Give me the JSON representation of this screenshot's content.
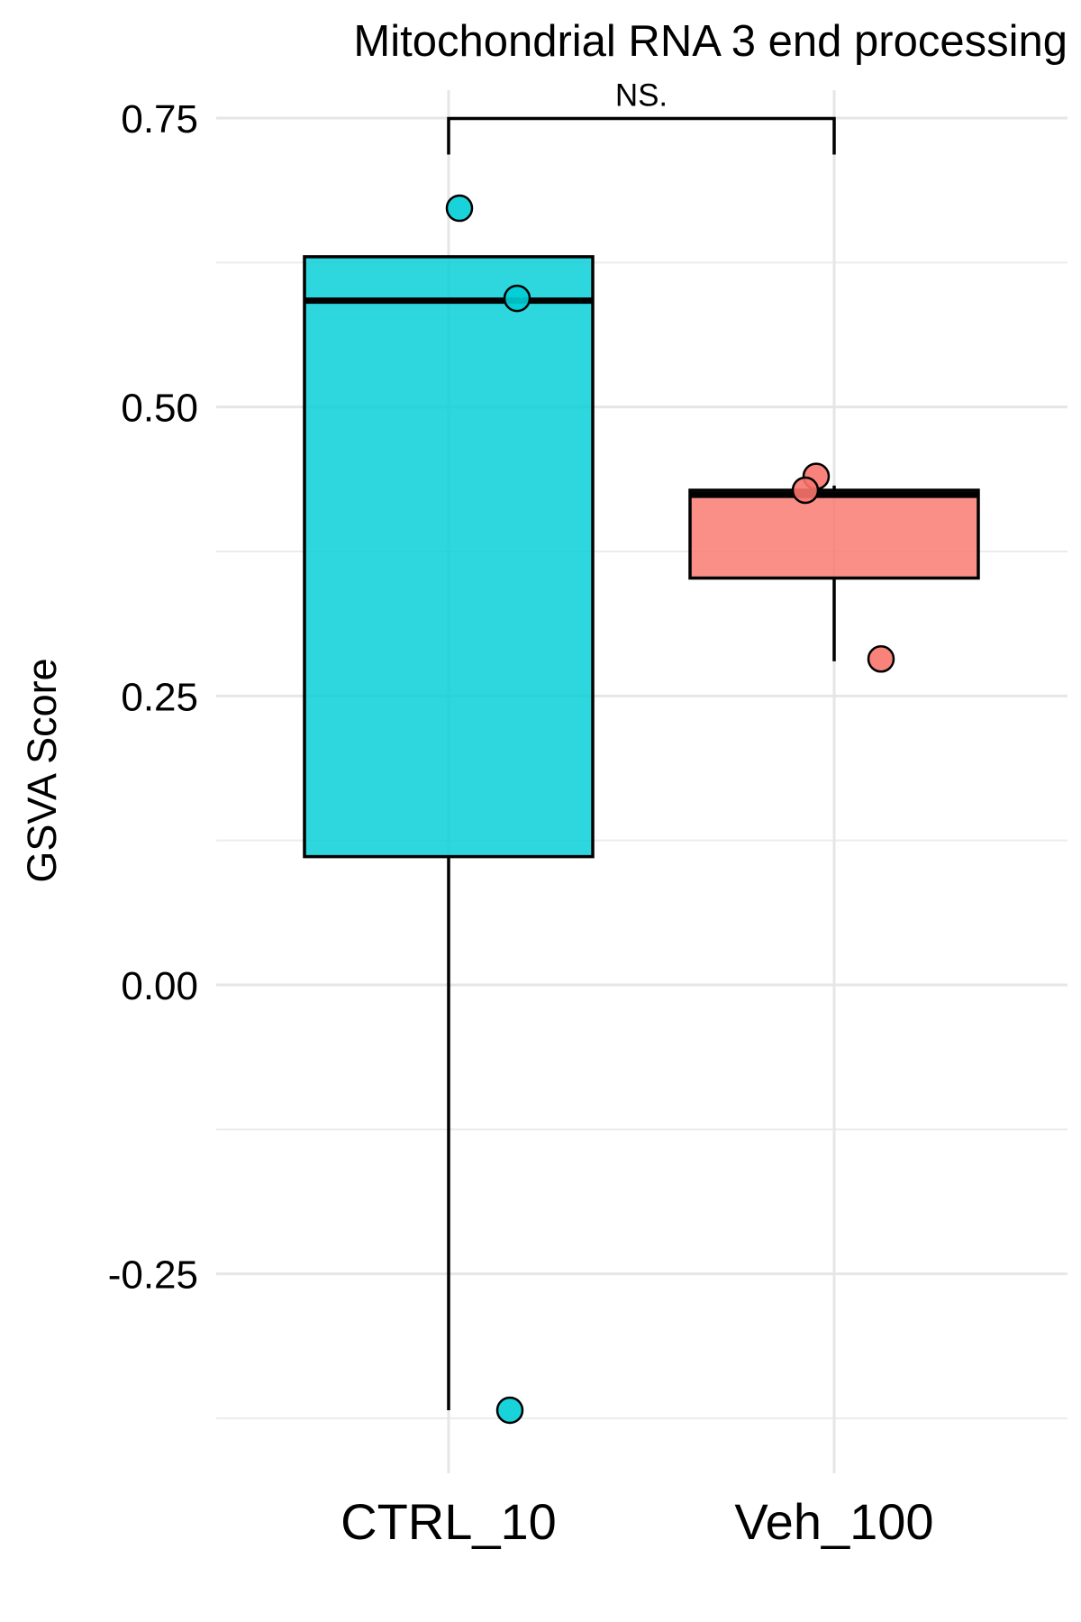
{
  "chart_data": {
    "type": "box",
    "title": "Mitochondrial RNA 3 end processing",
    "xlabel": "",
    "ylabel": "GSVA Score",
    "ylim": [
      -0.375,
      0.76
    ],
    "yticks": [
      -0.25,
      0.0,
      0.25,
      0.5,
      0.75
    ],
    "ytick_labels": [
      "-0.25",
      "0.00",
      "0.25",
      "0.50",
      "0.75"
    ],
    "y_minor_ticks": [
      -0.375,
      -0.125,
      0.125,
      0.375,
      0.625
    ],
    "categories": [
      "CTRL_10",
      "Veh_100"
    ],
    "grid": true,
    "legend": "none",
    "boxes": [
      {
        "group": "CTRL_10",
        "color": "#00CED6",
        "min": -0.368,
        "q1": 0.111,
        "median": 0.592,
        "q3": 0.63,
        "max": 0.63,
        "points": [
          0.672,
          0.594,
          -0.368
        ],
        "jitter": [
          0.03,
          0.19,
          0.17
        ]
      },
      {
        "group": "Veh_100",
        "color": "#F8766D",
        "min": 0.28,
        "q1": 0.352,
        "median": 0.424,
        "q3": 0.428,
        "max": 0.432,
        "points": [
          0.44,
          0.428,
          0.282
        ],
        "jitter": [
          -0.05,
          -0.08,
          0.13
        ]
      }
    ],
    "annotations": [
      {
        "type": "significance-bracket",
        "from": "CTRL_10",
        "to": "Veh_100",
        "label": "NS.",
        "y": 0.72
      }
    ]
  }
}
